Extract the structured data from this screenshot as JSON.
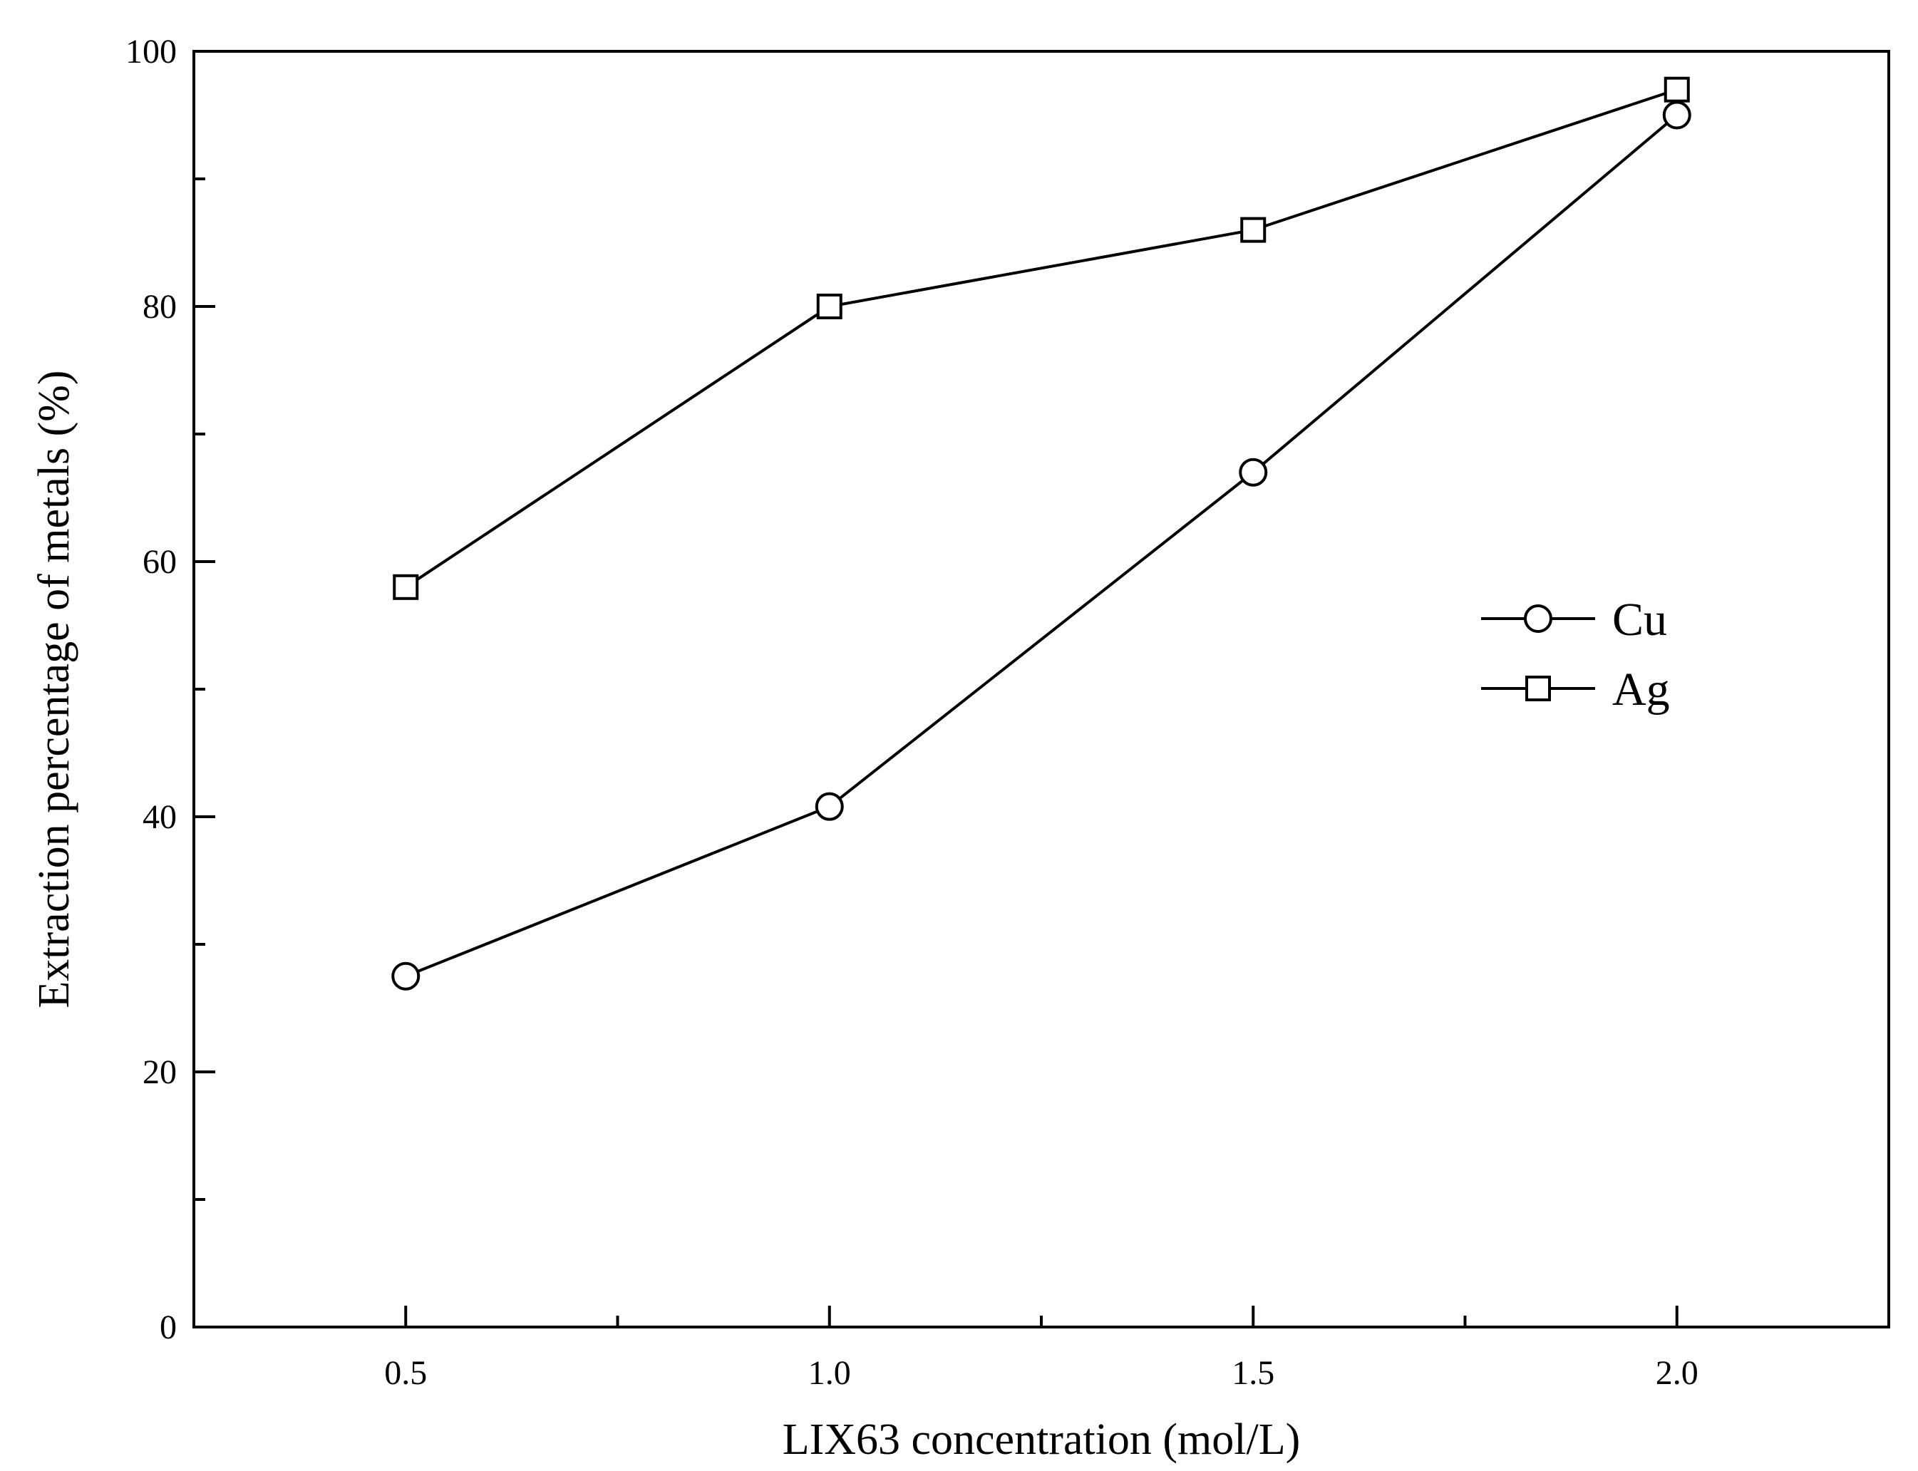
{
  "chart_data": {
    "type": "line",
    "title": "",
    "xlabel": "LIX63 concentration (mol/L)",
    "ylabel": "Extraction percentage of metals (%)",
    "xlim": [
      0.25,
      2.25
    ],
    "ylim": [
      0,
      100
    ],
    "x_ticks": [
      0.5,
      1.0,
      1.5,
      2.0
    ],
    "x_tick_labels": [
      "0.5",
      "1.0",
      "1.5",
      "2.0"
    ],
    "x_minor_ticks": [
      0.75,
      1.25,
      1.75
    ],
    "y_ticks": [
      0,
      20,
      40,
      60,
      80,
      100
    ],
    "y_tick_labels": [
      "0",
      "20",
      "40",
      "60",
      "80",
      "100"
    ],
    "y_minor_ticks": [
      10,
      30,
      50,
      70,
      90
    ],
    "grid": false,
    "legend_position": "right",
    "series": [
      {
        "name": "Cu",
        "marker": "circle",
        "x": [
          0.5,
          1.0,
          1.5,
          2.0
        ],
        "values": [
          27.5,
          40.8,
          67,
          95
        ]
      },
      {
        "name": "Ag",
        "marker": "square",
        "x": [
          0.5,
          1.0,
          1.5,
          2.0
        ],
        "values": [
          58,
          80,
          86,
          97
        ]
      }
    ]
  }
}
